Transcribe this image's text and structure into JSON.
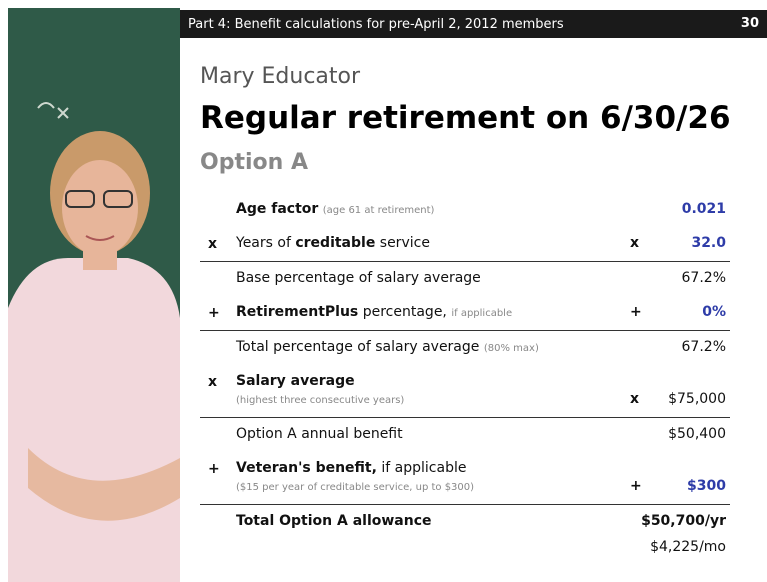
{
  "header": {
    "section": "Part 4: Benefit calculations for pre-April 2, 2012 members",
    "page": "30"
  },
  "name": "Mary Educator",
  "title": "Regular retirement on 6/30/26",
  "subtitle": "Option A",
  "rows": [
    {
      "op": null,
      "label": [
        {
          "text": "Age factor",
          "bold": true
        }
      ],
      "note": "(age 61 at retirement)",
      "op_right": null,
      "value": "0.021",
      "highlight": true,
      "rule_below": false
    },
    {
      "op": "x",
      "label": [
        {
          "text": "Years of ",
          "bold": false
        },
        {
          "text": "creditable",
          "bold": true
        },
        {
          "text": " service",
          "bold": false
        }
      ],
      "op_right": "x",
      "value": "32.0",
      "highlight": true,
      "rule_below": true
    },
    {
      "op": null,
      "label": [
        {
          "text": "Base percentage of salary average",
          "bold": false
        }
      ],
      "op_right": null,
      "value": "67.2%",
      "highlight": false,
      "rule_below": false
    },
    {
      "op": "+",
      "label": [
        {
          "text": "RetirementPlus",
          "bold": true
        },
        {
          "text": " percentage,",
          "bold": false
        }
      ],
      "note": "if applicable",
      "op_right": "+",
      "value": "0%",
      "highlight": true,
      "rule_below": true
    },
    {
      "op": null,
      "label": [
        {
          "text": "Total percentage of salary average",
          "bold": false
        }
      ],
      "note": "(80% max)",
      "op_right": null,
      "value": "67.2%",
      "highlight": false,
      "rule_below": false
    },
    {
      "op": "x",
      "label": [
        {
          "text": "Salary average",
          "bold": true
        }
      ],
      "subnote": "(highest three consecutive years)",
      "op_right": "x",
      "value": "$75,000",
      "highlight": false,
      "rule_below": true
    },
    {
      "op": null,
      "label": [
        {
          "text": "Option A annual benefit",
          "bold": false
        }
      ],
      "op_right": null,
      "value": "$50,400",
      "highlight": false,
      "rule_below": false
    },
    {
      "op": "+",
      "label": [
        {
          "text": "Veteran's benefit,",
          "bold": true
        },
        {
          "text": " if applicable",
          "bold": false
        }
      ],
      "subnote": "($15 per year of creditable service, up to $300)",
      "op_right": "+",
      "value": "$300",
      "highlight": true,
      "rule_below": true
    },
    {
      "op": null,
      "label": [
        {
          "text": "Total Option A allowance",
          "bold": true
        }
      ],
      "op_right": null,
      "value": "$50,700/yr",
      "value_bold": true,
      "extra": "$4,225/mo",
      "highlight": false,
      "rule_below": false
    }
  ]
}
